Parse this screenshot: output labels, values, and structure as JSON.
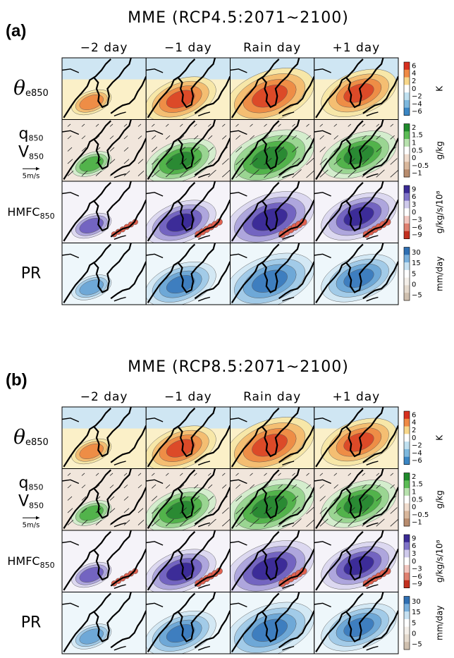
{
  "panels": [
    {
      "label": "(a)",
      "title": "MME (RCP4.5:2071~2100)",
      "columns": [
        "−2 day",
        "−1 day",
        "Rain day",
        "+1 day"
      ],
      "rows": [
        {
          "labels": [
            {
              "main": "θ",
              "sub": "e850"
            }
          ],
          "colorbar": [
            "6",
            "4",
            "2",
            "0",
            "−2",
            "−4",
            "−6"
          ],
          "unit": "K"
        },
        {
          "labels": [
            {
              "main": "q",
              "sub": "850"
            },
            {
              "main": "V",
              "sub": "850"
            }
          ],
          "scale": "5m/s",
          "colorbar": [
            "2",
            "1.5",
            "1",
            "0.5",
            "0",
            "−0.5",
            "−1"
          ],
          "unit": "g/kg"
        },
        {
          "labels": [
            {
              "main": "HMFC",
              "sub": "850"
            }
          ],
          "colorbar": [
            "9",
            "6",
            "3",
            "0",
            "−3",
            "−6",
            "−9"
          ],
          "unit": "g/kg/s/10⁸"
        },
        {
          "labels": [
            {
              "main": "PR"
            }
          ],
          "colorbar": [
            "30",
            "15",
            "5",
            "0",
            "−5"
          ],
          "unit": "mm/day"
        }
      ]
    },
    {
      "label": "(b)",
      "title": "MME (RCP8.5:2071~2100)",
      "columns": [
        "−2 day",
        "−1 day",
        "Rain day",
        "+1 day"
      ],
      "rows": [
        {
          "labels": [
            {
              "main": "θ",
              "sub": "e850"
            }
          ],
          "colorbar": [
            "6",
            "4",
            "2",
            "0",
            "−2",
            "−4",
            "−6"
          ],
          "unit": "K"
        },
        {
          "labels": [
            {
              "main": "q",
              "sub": "850"
            },
            {
              "main": "V",
              "sub": "850"
            }
          ],
          "scale": "5m/s",
          "colorbar": [
            "2",
            "1.5",
            "1",
            "0.5",
            "0",
            "−0.5",
            "−1"
          ],
          "unit": "g/kg"
        },
        {
          "labels": [
            {
              "main": "HMFC",
              "sub": "850"
            }
          ],
          "colorbar": [
            "9",
            "6",
            "3",
            "0",
            "−3",
            "−6",
            "−9"
          ],
          "unit": "g/kg/s/10⁸"
        },
        {
          "labels": [
            {
              "main": "PR"
            }
          ],
          "colorbar": [
            "30",
            "15",
            "5",
            "0",
            "−5"
          ],
          "unit": "mm/day"
        }
      ]
    }
  ]
}
